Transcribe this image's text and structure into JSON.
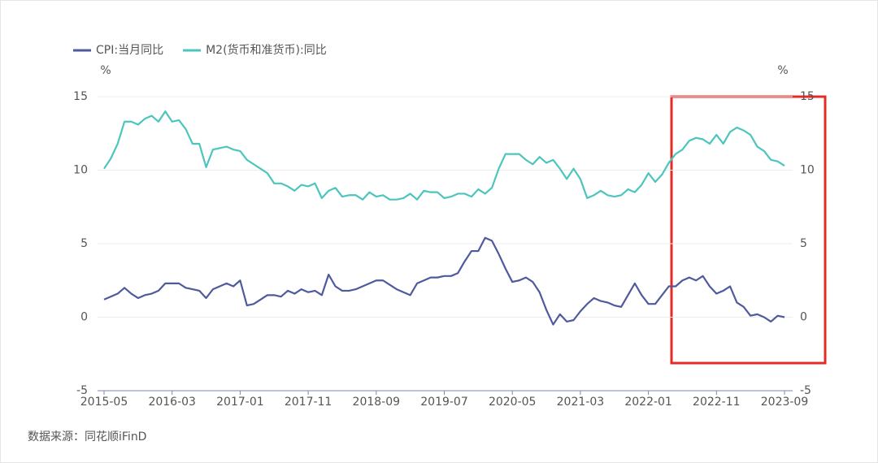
{
  "chart_data": {
    "type": "line",
    "categories": [
      "2015-05",
      null,
      null,
      null,
      null,
      null,
      null,
      null,
      null,
      null,
      "2016-03",
      null,
      null,
      null,
      null,
      null,
      null,
      null,
      null,
      null,
      "2017-01",
      null,
      null,
      null,
      null,
      null,
      null,
      null,
      null,
      null,
      "2017-11",
      null,
      null,
      null,
      null,
      null,
      null,
      null,
      null,
      null,
      "2018-09",
      null,
      null,
      null,
      null,
      null,
      null,
      null,
      null,
      null,
      "2019-07",
      null,
      null,
      null,
      null,
      null,
      null,
      null,
      null,
      null,
      "2020-05",
      null,
      null,
      null,
      null,
      null,
      null,
      null,
      null,
      null,
      "2021-03",
      null,
      null,
      null,
      null,
      null,
      null,
      null,
      null,
      null,
      "2022-01",
      null,
      null,
      null,
      null,
      null,
      null,
      null,
      null,
      null,
      "2022-11",
      null,
      null,
      null,
      null,
      null,
      null,
      null,
      null,
      null,
      "2023-09"
    ],
    "series": [
      {
        "name": "CPI:当月同比",
        "color": "#4f5a9c",
        "values": [
          1.2,
          1.4,
          1.6,
          2.0,
          1.6,
          1.3,
          1.5,
          1.6,
          1.8,
          2.3,
          2.3,
          2.3,
          2.0,
          1.9,
          1.8,
          1.3,
          1.9,
          2.1,
          2.3,
          2.1,
          2.5,
          0.8,
          0.9,
          1.2,
          1.5,
          1.5,
          1.4,
          1.8,
          1.6,
          1.9,
          1.7,
          1.8,
          1.5,
          2.9,
          2.1,
          1.8,
          1.8,
          1.9,
          2.1,
          2.3,
          2.5,
          2.5,
          2.2,
          1.9,
          1.7,
          1.5,
          2.3,
          2.5,
          2.7,
          2.7,
          2.8,
          2.8,
          3.0,
          3.8,
          4.5,
          4.5,
          5.4,
          5.2,
          4.3,
          3.3,
          2.4,
          2.5,
          2.7,
          2.4,
          1.7,
          0.5,
          -0.5,
          0.2,
          -0.3,
          -0.2,
          0.4,
          0.9,
          1.3,
          1.1,
          1.0,
          0.8,
          0.7,
          1.5,
          2.3,
          1.5,
          0.9,
          0.9,
          1.5,
          2.1,
          2.1,
          2.5,
          2.7,
          2.5,
          2.8,
          2.1,
          1.6,
          1.8,
          2.1,
          1.0,
          0.7,
          0.1,
          0.2,
          0.0,
          -0.3,
          0.1,
          0.0
        ]
      },
      {
        "name": "M2(货币和准货币):同比",
        "color": "#4cc5bd",
        "axis": "y2",
        "values": [
          10.1,
          10.8,
          11.8,
          13.3,
          13.3,
          13.1,
          13.5,
          13.7,
          13.3,
          14.0,
          13.3,
          13.4,
          12.8,
          11.8,
          11.8,
          10.2,
          11.4,
          11.5,
          11.6,
          11.4,
          11.3,
          10.7,
          10.4,
          10.1,
          9.8,
          9.1,
          9.1,
          8.9,
          8.6,
          9.0,
          8.9,
          9.1,
          8.1,
          8.6,
          8.8,
          8.2,
          8.3,
          8.3,
          8.0,
          8.5,
          8.2,
          8.3,
          8.0,
          8.0,
          8.1,
          8.4,
          8.0,
          8.6,
          8.5,
          8.5,
          8.1,
          8.2,
          8.4,
          8.4,
          8.2,
          8.7,
          8.4,
          8.8,
          10.1,
          11.1,
          11.1,
          11.1,
          10.7,
          10.4,
          10.9,
          10.5,
          10.7,
          10.1,
          9.4,
          10.1,
          9.4,
          8.1,
          8.3,
          8.6,
          8.3,
          8.2,
          8.3,
          8.7,
          8.5,
          9.0,
          9.8,
          9.2,
          9.7,
          10.5,
          11.1,
          11.4,
          12.0,
          12.2,
          12.1,
          11.8,
          12.4,
          11.8,
          12.6,
          12.9,
          12.7,
          12.4,
          11.6,
          11.3,
          10.7,
          10.6,
          10.3
        ]
      }
    ],
    "ylim": [
      -5,
      15
    ],
    "yticks": [
      -5,
      0,
      5,
      10,
      15
    ],
    "y_unit": "%",
    "y2lim": [
      -5,
      15
    ],
    "y2ticks": [
      -5,
      0,
      5,
      10,
      15
    ],
    "y2_unit": "%",
    "grid": true,
    "legend": "top-left",
    "source": "数据来源：同花顺iFinD"
  }
}
